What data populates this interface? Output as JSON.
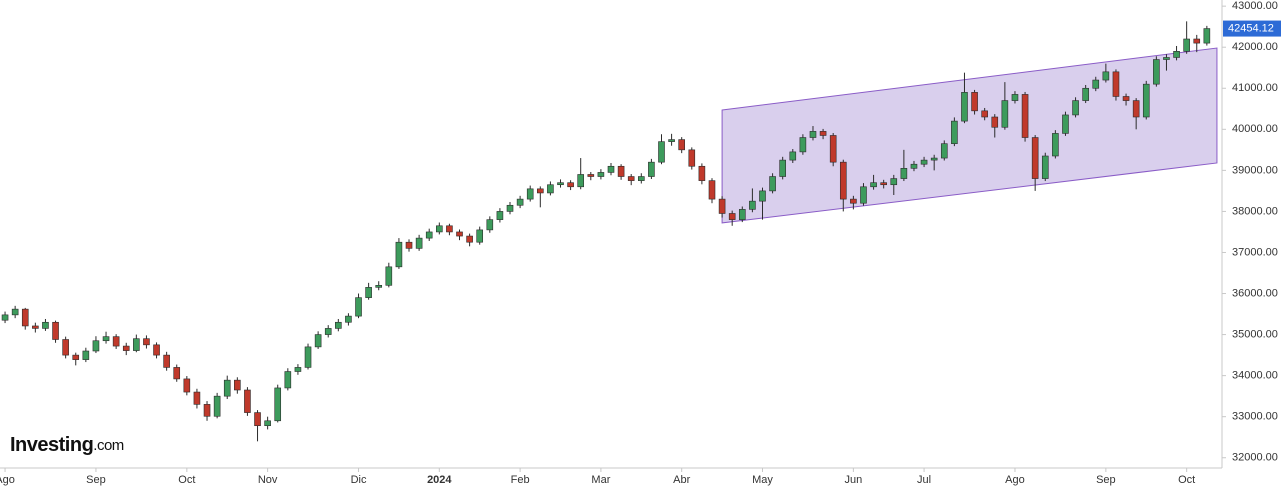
{
  "chart_data": {
    "type": "candlestick",
    "watermark": [
      "Investing",
      ".com"
    ],
    "up_color": "#3d9b5c",
    "down_color": "#c0392b",
    "edge_color": "#2b2b2b",
    "ylim": [
      31750,
      43150
    ],
    "yticks": [
      {
        "value": 32000,
        "label": "32000.00"
      },
      {
        "value": 33000,
        "label": "33000.00"
      },
      {
        "value": 34000,
        "label": "34000.00"
      },
      {
        "value": 35000,
        "label": "35000.00"
      },
      {
        "value": 36000,
        "label": "36000.00"
      },
      {
        "value": 37000,
        "label": "37000.00"
      },
      {
        "value": 38000,
        "label": "38000.00"
      },
      {
        "value": 39000,
        "label": "39000.00"
      },
      {
        "value": 40000,
        "label": "40000.00"
      },
      {
        "value": 41000,
        "label": "41000.00"
      },
      {
        "value": 42000,
        "label": "42000.00"
      },
      {
        "value": 43000,
        "label": "43000.00"
      }
    ],
    "last_price_color": "#2d6bd6",
    "x": [
      "Ago",
      null,
      null,
      null,
      null,
      null,
      null,
      null,
      null,
      "Sep",
      null,
      null,
      null,
      null,
      null,
      null,
      null,
      null,
      "Oct",
      null,
      null,
      null,
      null,
      null,
      null,
      null,
      "Nov",
      null,
      null,
      null,
      null,
      null,
      null,
      null,
      null,
      "Dic",
      null,
      null,
      null,
      null,
      null,
      null,
      null,
      "2024",
      null,
      null,
      null,
      null,
      null,
      null,
      null,
      "Feb",
      null,
      null,
      null,
      null,
      null,
      null,
      null,
      "Mar",
      null,
      null,
      null,
      null,
      null,
      null,
      null,
      "Abr",
      null,
      null,
      null,
      null,
      null,
      null,
      null,
      "May",
      null,
      null,
      null,
      null,
      null,
      null,
      null,
      null,
      "Jun",
      null,
      null,
      null,
      null,
      null,
      null,
      "Jul",
      null,
      null,
      null,
      null,
      null,
      null,
      null,
      null,
      "Ago",
      null,
      null,
      null,
      null,
      null,
      null,
      null,
      null,
      "Sep",
      null,
      null,
      null,
      null,
      null,
      null,
      null,
      "Oct",
      null,
      null
    ],
    "candles": [
      [
        35350,
        35560,
        35280,
        35480
      ],
      [
        35480,
        35700,
        35400,
        35620
      ],
      [
        35620,
        35650,
        35120,
        35210
      ],
      [
        35210,
        35290,
        35050,
        35150
      ],
      [
        35150,
        35380,
        35090,
        35300
      ],
      [
        35300,
        35340,
        34800,
        34880
      ],
      [
        34880,
        34950,
        34420,
        34500
      ],
      [
        34500,
        34560,
        34250,
        34390
      ],
      [
        34390,
        34680,
        34330,
        34600
      ],
      [
        34600,
        34960,
        34550,
        34850
      ],
      [
        34850,
        35070,
        34780,
        34950
      ],
      [
        34950,
        35010,
        34650,
        34720
      ],
      [
        34720,
        34800,
        34500,
        34610
      ],
      [
        34610,
        35000,
        34570,
        34900
      ],
      [
        34900,
        34980,
        34660,
        34750
      ],
      [
        34750,
        34810,
        34420,
        34500
      ],
      [
        34500,
        34580,
        34120,
        34200
      ],
      [
        34200,
        34270,
        33850,
        33920
      ],
      [
        33920,
        33990,
        33520,
        33600
      ],
      [
        33600,
        33680,
        33200,
        33300
      ],
      [
        33300,
        33380,
        32900,
        33010
      ],
      [
        33010,
        33580,
        32960,
        33500
      ],
      [
        33500,
        34000,
        33430,
        33890
      ],
      [
        33890,
        33960,
        33560,
        33650
      ],
      [
        33650,
        33720,
        33020,
        33100
      ],
      [
        33100,
        33160,
        32400,
        32780
      ],
      [
        32780,
        33000,
        32690,
        32900
      ],
      [
        32900,
        33780,
        32860,
        33700
      ],
      [
        33700,
        34180,
        33640,
        34100
      ],
      [
        34100,
        34280,
        34020,
        34200
      ],
      [
        34200,
        34780,
        34150,
        34700
      ],
      [
        34700,
        35080,
        34650,
        35000
      ],
      [
        35000,
        35230,
        34930,
        35150
      ],
      [
        35150,
        35380,
        35080,
        35300
      ],
      [
        35300,
        35520,
        35220,
        35450
      ],
      [
        35450,
        36000,
        35400,
        35900
      ],
      [
        35900,
        36260,
        35850,
        36150
      ],
      [
        36150,
        36300,
        36080,
        36200
      ],
      [
        36200,
        36750,
        36150,
        36650
      ],
      [
        36650,
        37350,
        36600,
        37250
      ],
      [
        37250,
        37320,
        37020,
        37100
      ],
      [
        37100,
        37430,
        37040,
        37350
      ],
      [
        37350,
        37580,
        37280,
        37500
      ],
      [
        37500,
        37730,
        37440,
        37650
      ],
      [
        37650,
        37700,
        37420,
        37500
      ],
      [
        37500,
        37560,
        37300,
        37400
      ],
      [
        37400,
        37460,
        37150,
        37250
      ],
      [
        37250,
        37630,
        37190,
        37550
      ],
      [
        37550,
        37880,
        37480,
        37800
      ],
      [
        37800,
        38080,
        37730,
        38000
      ],
      [
        38000,
        38230,
        37930,
        38150
      ],
      [
        38150,
        38380,
        38080,
        38300
      ],
      [
        38300,
        38630,
        38240,
        38550
      ],
      [
        38550,
        38610,
        38100,
        38450
      ],
      [
        38450,
        38730,
        38390,
        38650
      ],
      [
        38650,
        38780,
        38580,
        38700
      ],
      [
        38700,
        38760,
        38520,
        38600
      ],
      [
        38600,
        39300,
        38540,
        38900
      ],
      [
        38900,
        38960,
        38760,
        38850
      ],
      [
        38850,
        39030,
        38780,
        38950
      ],
      [
        38950,
        39180,
        38880,
        39100
      ],
      [
        39100,
        39150,
        38770,
        38850
      ],
      [
        38850,
        38910,
        38640,
        38750
      ],
      [
        38750,
        38930,
        38680,
        38850
      ],
      [
        38850,
        39280,
        38790,
        39200
      ],
      [
        39200,
        39880,
        39150,
        39700
      ],
      [
        39700,
        39890,
        39600,
        39750
      ],
      [
        39750,
        39810,
        39420,
        39500
      ],
      [
        39500,
        39560,
        39020,
        39100
      ],
      [
        39100,
        39170,
        38660,
        38750
      ],
      [
        38750,
        38810,
        38200,
        38300
      ],
      [
        38300,
        38370,
        37850,
        37950
      ],
      [
        37950,
        38020,
        37650,
        37800
      ],
      [
        37800,
        38120,
        37740,
        38050
      ],
      [
        38050,
        38560,
        37980,
        38250
      ],
      [
        38250,
        38580,
        37800,
        38500
      ],
      [
        38500,
        38930,
        38440,
        38850
      ],
      [
        38850,
        39330,
        38780,
        39250
      ],
      [
        39250,
        39520,
        39180,
        39450
      ],
      [
        39450,
        39880,
        39380,
        39800
      ],
      [
        39800,
        40080,
        39730,
        39950
      ],
      [
        39950,
        40010,
        39760,
        39850
      ],
      [
        39850,
        39910,
        39100,
        39200
      ],
      [
        39200,
        39260,
        38000,
        38300
      ],
      [
        38300,
        38380,
        38050,
        38200
      ],
      [
        38200,
        38690,
        38140,
        38600
      ],
      [
        38600,
        38890,
        38530,
        38700
      ],
      [
        38700,
        38770,
        38560,
        38650
      ],
      [
        38650,
        38890,
        38400,
        38800
      ],
      [
        38800,
        39500,
        38740,
        39050
      ],
      [
        39050,
        39230,
        38980,
        39150
      ],
      [
        39150,
        39330,
        39080,
        39250
      ],
      [
        39250,
        39380,
        39000,
        39300
      ],
      [
        39300,
        39730,
        39240,
        39650
      ],
      [
        39650,
        40290,
        39590,
        40200
      ],
      [
        40200,
        41380,
        40150,
        40900
      ],
      [
        40900,
        40960,
        40360,
        40450
      ],
      [
        40450,
        40520,
        40220,
        40300
      ],
      [
        40300,
        40370,
        39800,
        40050
      ],
      [
        40050,
        41150,
        39990,
        40700
      ],
      [
        40700,
        40930,
        40630,
        40850
      ],
      [
        40850,
        40910,
        39700,
        39800
      ],
      [
        39800,
        39860,
        38500,
        38800
      ],
      [
        38800,
        39430,
        38740,
        39350
      ],
      [
        39350,
        39980,
        39290,
        39900
      ],
      [
        39900,
        40430,
        39840,
        40350
      ],
      [
        40350,
        40780,
        40290,
        40700
      ],
      [
        40700,
        41080,
        40640,
        41000
      ],
      [
        41000,
        41280,
        40930,
        41200
      ],
      [
        41200,
        41600,
        41140,
        41400
      ],
      [
        41400,
        41460,
        40700,
        40800
      ],
      [
        40800,
        40870,
        40580,
        40700
      ],
      [
        40700,
        40760,
        40000,
        40300
      ],
      [
        40300,
        41180,
        40240,
        41100
      ],
      [
        41100,
        41780,
        41040,
        41700
      ],
      [
        41700,
        41830,
        41430,
        41750
      ],
      [
        41750,
        42030,
        41680,
        41900
      ],
      [
        41900,
        42630,
        41840,
        42200
      ],
      [
        42200,
        42300,
        41880,
        42100
      ],
      [
        42100,
        42520,
        42040,
        42454.12
      ]
    ],
    "channel": {
      "x": [
        71,
        120
      ],
      "upper": [
        40470,
        41980
      ],
      "lower": [
        37720,
        39180
      ],
      "fill": "rgba(128,96,196,0.3)",
      "stroke": "#8a5cc7"
    }
  }
}
